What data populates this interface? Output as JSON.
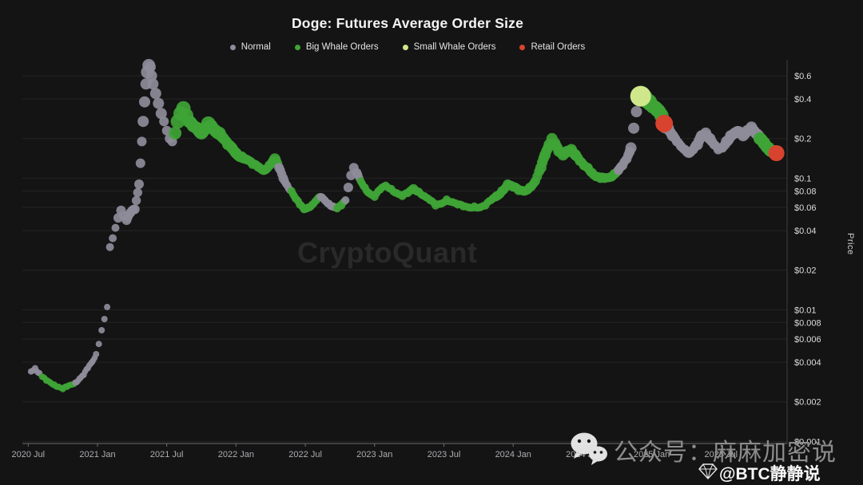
{
  "title": "Doge: Futures Average Order Size",
  "watermark": "CryptoQuant",
  "y_axis_title": "Price",
  "overlay": {
    "wechat_icon": "wechat-icon",
    "wechat_text": "公众号：麻麻加密说",
    "handle_icon": "diamond-icon",
    "handle": "@BTC静静说"
  },
  "chart_data": {
    "type": "scatter",
    "title": "Doge: Futures Average Order Size",
    "ylabel": "Price",
    "xlabel": "",
    "y_scale": "log",
    "x_range": [
      2020.45,
      2026.0
    ],
    "y_range": [
      0.001,
      0.75
    ],
    "grid": "horizontal",
    "legend_position": "top-center",
    "categories": [
      {
        "key": "n",
        "label": "Normal",
        "color": "#8f8c9a"
      },
      {
        "key": "b",
        "label": "Big Whale Orders",
        "color": "#3fa436"
      },
      {
        "key": "s",
        "label": "Small Whale Orders",
        "color": "#cfe78b"
      },
      {
        "key": "r",
        "label": "Retail Orders",
        "color": "#d7432e"
      }
    ],
    "x_ticks": [
      {
        "label": "2020 Jul",
        "t": 2020.5
      },
      {
        "label": "2021 Jan",
        "t": 2021.0
      },
      {
        "label": "2021 Jul",
        "t": 2021.5
      },
      {
        "label": "2022 Jan",
        "t": 2022.0
      },
      {
        "label": "2022 Jul",
        "t": 2022.5
      },
      {
        "label": "2023 Jan",
        "t": 2023.0
      },
      {
        "label": "2023 Jul",
        "t": 2023.5
      },
      {
        "label": "2024 Jan",
        "t": 2024.0
      },
      {
        "label": "2024 Jul",
        "t": 2024.5
      },
      {
        "label": "2025 Jan",
        "t": 2025.0
      },
      {
        "label": "2025 Jul",
        "t": 2025.5
      }
    ],
    "y_ticks": [
      {
        "label": "$0.6",
        "value": 0.6
      },
      {
        "label": "$0.4",
        "value": 0.4
      },
      {
        "label": "$0.2",
        "value": 0.2
      },
      {
        "label": "$0.1",
        "value": 0.1
      },
      {
        "label": "$0.08",
        "value": 0.08
      },
      {
        "label": "$0.06",
        "value": 0.06
      },
      {
        "label": "$0.04",
        "value": 0.04
      },
      {
        "label": "$0.02",
        "value": 0.02
      },
      {
        "label": "$0.01",
        "value": 0.01
      },
      {
        "label": "$0.008",
        "value": 0.008
      },
      {
        "label": "$0.006",
        "value": 0.006
      },
      {
        "label": "$0.004",
        "value": 0.004
      },
      {
        "label": "$0.002",
        "value": 0.002
      },
      {
        "label": "$0.001",
        "value": 0.001
      }
    ],
    "point_format": [
      "time_decimal_year",
      "price_usd",
      "category_key",
      "marker_radius_px"
    ],
    "points": [
      [
        2020.52,
        0.0034,
        "n",
        4
      ],
      [
        2020.55,
        0.0036,
        "n",
        4
      ],
      [
        2020.58,
        0.0033,
        "n",
        4
      ],
      [
        2020.6,
        0.0031,
        "b",
        4
      ],
      [
        2020.63,
        0.0029,
        "b",
        4
      ],
      [
        2020.66,
        0.0028,
        "b",
        4
      ],
      [
        2020.69,
        0.0027,
        "b",
        4
      ],
      [
        2020.72,
        0.0026,
        "b",
        4
      ],
      [
        2020.75,
        0.0025,
        "b",
        4
      ],
      [
        2020.78,
        0.0026,
        "b",
        4
      ],
      [
        2020.81,
        0.0027,
        "b",
        4
      ],
      [
        2020.84,
        0.0028,
        "n",
        4
      ],
      [
        2020.87,
        0.003,
        "n",
        4
      ],
      [
        2020.9,
        0.0032,
        "n",
        4
      ],
      [
        2020.93,
        0.0036,
        "n",
        4
      ],
      [
        2020.96,
        0.004,
        "n",
        4
      ],
      [
        2020.99,
        0.0046,
        "n",
        4
      ],
      [
        2021.01,
        0.0055,
        "n",
        4
      ],
      [
        2021.03,
        0.007,
        "n",
        4
      ],
      [
        2021.05,
        0.0085,
        "n",
        4
      ],
      [
        2021.07,
        0.0105,
        "n",
        4
      ],
      [
        2021.09,
        0.03,
        "n",
        5
      ],
      [
        2021.11,
        0.035,
        "n",
        5
      ],
      [
        2021.13,
        0.042,
        "n",
        5
      ],
      [
        2021.15,
        0.05,
        "n",
        6
      ],
      [
        2021.17,
        0.057,
        "n",
        6
      ],
      [
        2021.19,
        0.052,
        "n",
        6
      ],
      [
        2021.21,
        0.048,
        "n",
        6
      ],
      [
        2021.24,
        0.055,
        "n",
        6
      ],
      [
        2021.27,
        0.058,
        "n",
        6
      ],
      [
        2021.3,
        0.09,
        "n",
        6
      ],
      [
        2021.31,
        0.13,
        "n",
        6
      ],
      [
        2021.32,
        0.19,
        "n",
        6
      ],
      [
        2021.33,
        0.27,
        "n",
        7
      ],
      [
        2021.34,
        0.38,
        "n",
        7
      ],
      [
        2021.35,
        0.52,
        "n",
        7
      ],
      [
        2021.36,
        0.64,
        "n",
        8
      ],
      [
        2021.37,
        0.72,
        "n",
        8
      ],
      [
        2021.38,
        0.7,
        "n",
        7
      ],
      [
        2021.39,
        0.6,
        "n",
        7
      ],
      [
        2021.4,
        0.52,
        "n",
        7
      ],
      [
        2021.42,
        0.44,
        "n",
        7
      ],
      [
        2021.44,
        0.37,
        "n",
        7
      ],
      [
        2021.46,
        0.31,
        "n",
        7
      ],
      [
        2021.48,
        0.27,
        "n",
        6
      ],
      [
        2021.5,
        0.23,
        "n",
        6
      ],
      [
        2021.52,
        0.2,
        "n",
        6
      ],
      [
        2021.54,
        0.19,
        "n",
        6
      ],
      [
        2021.56,
        0.22,
        "b",
        8
      ],
      [
        2021.58,
        0.27,
        "b",
        9
      ],
      [
        2021.6,
        0.31,
        "b",
        9
      ],
      [
        2021.62,
        0.34,
        "b",
        9
      ],
      [
        2021.64,
        0.3,
        "b",
        9
      ],
      [
        2021.66,
        0.27,
        "b",
        8
      ],
      [
        2021.69,
        0.25,
        "b",
        8
      ],
      [
        2021.72,
        0.24,
        "b",
        8
      ],
      [
        2021.75,
        0.22,
        "b",
        8
      ],
      [
        2021.78,
        0.24,
        "b",
        8
      ],
      [
        2021.8,
        0.26,
        "b",
        9
      ],
      [
        2021.82,
        0.25,
        "b",
        8
      ],
      [
        2021.85,
        0.23,
        "b",
        8
      ],
      [
        2021.88,
        0.22,
        "b",
        8
      ],
      [
        2021.91,
        0.2,
        "b",
        7
      ],
      [
        2021.94,
        0.18,
        "b",
        7
      ],
      [
        2021.97,
        0.17,
        "b",
        7
      ],
      [
        2022.0,
        0.155,
        "b",
        7
      ],
      [
        2022.04,
        0.145,
        "b",
        7
      ],
      [
        2022.08,
        0.138,
        "b",
        6
      ],
      [
        2022.12,
        0.128,
        "b",
        6
      ],
      [
        2022.16,
        0.122,
        "b",
        6
      ],
      [
        2022.2,
        0.115,
        "b",
        6
      ],
      [
        2022.24,
        0.125,
        "b",
        6
      ],
      [
        2022.28,
        0.14,
        "b",
        7
      ],
      [
        2022.31,
        0.12,
        "n",
        6
      ],
      [
        2022.34,
        0.1,
        "n",
        6
      ],
      [
        2022.37,
        0.088,
        "n",
        5
      ],
      [
        2022.4,
        0.08,
        "b",
        5
      ],
      [
        2022.43,
        0.07,
        "b",
        5
      ],
      [
        2022.46,
        0.063,
        "b",
        5
      ],
      [
        2022.49,
        0.058,
        "b",
        5
      ],
      [
        2022.52,
        0.06,
        "b",
        5
      ],
      [
        2022.55,
        0.063,
        "b",
        5
      ],
      [
        2022.58,
        0.068,
        "b",
        5
      ],
      [
        2022.61,
        0.072,
        "n",
        5
      ],
      [
        2022.64,
        0.068,
        "n",
        5
      ],
      [
        2022.67,
        0.064,
        "n",
        5
      ],
      [
        2022.7,
        0.061,
        "n",
        5
      ],
      [
        2022.73,
        0.059,
        "b",
        5
      ],
      [
        2022.76,
        0.062,
        "b",
        5
      ],
      [
        2022.79,
        0.068,
        "n",
        5
      ],
      [
        2022.81,
        0.085,
        "n",
        6
      ],
      [
        2022.83,
        0.105,
        "n",
        6
      ],
      [
        2022.85,
        0.12,
        "n",
        6
      ],
      [
        2022.87,
        0.11,
        "n",
        6
      ],
      [
        2022.9,
        0.095,
        "b",
        5
      ],
      [
        2022.93,
        0.085,
        "b",
        5
      ],
      [
        2022.96,
        0.077,
        "b",
        5
      ],
      [
        2023.0,
        0.072,
        "b",
        5
      ],
      [
        2023.04,
        0.082,
        "b",
        5
      ],
      [
        2023.08,
        0.088,
        "b",
        5
      ],
      [
        2023.12,
        0.083,
        "b",
        5
      ],
      [
        2023.16,
        0.077,
        "b",
        5
      ],
      [
        2023.2,
        0.073,
        "b",
        5
      ],
      [
        2023.24,
        0.077,
        "b",
        5
      ],
      [
        2023.28,
        0.083,
        "b",
        6
      ],
      [
        2023.32,
        0.079,
        "b",
        5
      ],
      [
        2023.36,
        0.073,
        "b",
        5
      ],
      [
        2023.4,
        0.068,
        "b",
        5
      ],
      [
        2023.44,
        0.062,
        "b",
        5
      ],
      [
        2023.48,
        0.064,
        "b",
        5
      ],
      [
        2023.52,
        0.069,
        "b",
        5
      ],
      [
        2023.56,
        0.066,
        "b",
        5
      ],
      [
        2023.6,
        0.063,
        "b",
        5
      ],
      [
        2023.64,
        0.061,
        "b",
        5
      ],
      [
        2023.68,
        0.06,
        "b",
        5
      ],
      [
        2023.72,
        0.061,
        "b",
        5
      ],
      [
        2023.76,
        0.06,
        "b",
        5
      ],
      [
        2023.8,
        0.062,
        "b",
        5
      ],
      [
        2023.84,
        0.068,
        "b",
        5
      ],
      [
        2023.88,
        0.073,
        "b",
        6
      ],
      [
        2023.92,
        0.08,
        "b",
        6
      ],
      [
        2023.96,
        0.09,
        "b",
        6
      ],
      [
        2024.0,
        0.086,
        "b",
        6
      ],
      [
        2024.04,
        0.081,
        "b",
        6
      ],
      [
        2024.08,
        0.08,
        "b",
        6
      ],
      [
        2024.12,
        0.085,
        "b",
        6
      ],
      [
        2024.16,
        0.095,
        "b",
        6
      ],
      [
        2024.2,
        0.12,
        "b",
        7
      ],
      [
        2024.23,
        0.15,
        "b",
        7
      ],
      [
        2024.26,
        0.18,
        "b",
        7
      ],
      [
        2024.28,
        0.2,
        "b",
        7
      ],
      [
        2024.3,
        0.185,
        "b",
        7
      ],
      [
        2024.33,
        0.16,
        "b",
        7
      ],
      [
        2024.36,
        0.15,
        "b",
        7
      ],
      [
        2024.39,
        0.16,
        "b",
        7
      ],
      [
        2024.42,
        0.165,
        "b",
        7
      ],
      [
        2024.45,
        0.15,
        "b",
        7
      ],
      [
        2024.48,
        0.135,
        "b",
        6
      ],
      [
        2024.51,
        0.125,
        "b",
        6
      ],
      [
        2024.54,
        0.12,
        "b",
        6
      ],
      [
        2024.57,
        0.11,
        "b",
        6
      ],
      [
        2024.6,
        0.103,
        "b",
        6
      ],
      [
        2024.63,
        0.1,
        "b",
        6
      ],
      [
        2024.66,
        0.1,
        "b",
        6
      ],
      [
        2024.7,
        0.102,
        "b",
        6
      ],
      [
        2024.73,
        0.108,
        "b",
        6
      ],
      [
        2024.76,
        0.115,
        "n",
        6
      ],
      [
        2024.79,
        0.125,
        "n",
        6
      ],
      [
        2024.82,
        0.14,
        "n",
        6
      ],
      [
        2024.85,
        0.17,
        "n",
        7
      ],
      [
        2024.87,
        0.24,
        "n",
        7
      ],
      [
        2024.89,
        0.32,
        "n",
        7
      ],
      [
        2024.91,
        0.4,
        "n",
        8
      ],
      [
        2024.92,
        0.42,
        "s",
        13
      ],
      [
        2024.95,
        0.41,
        "b",
        10
      ],
      [
        2024.98,
        0.38,
        "b",
        10
      ],
      [
        2025.01,
        0.35,
        "b",
        9
      ],
      [
        2025.04,
        0.33,
        "b",
        9
      ],
      [
        2025.07,
        0.3,
        "b",
        9
      ],
      [
        2025.09,
        0.26,
        "r",
        11
      ],
      [
        2025.12,
        0.24,
        "n",
        7
      ],
      [
        2025.15,
        0.21,
        "n",
        7
      ],
      [
        2025.18,
        0.19,
        "n",
        6
      ],
      [
        2025.21,
        0.175,
        "n",
        6
      ],
      [
        2025.24,
        0.165,
        "n",
        6
      ],
      [
        2025.27,
        0.155,
        "n",
        6
      ],
      [
        2025.3,
        0.165,
        "n",
        6
      ],
      [
        2025.33,
        0.18,
        "n",
        7
      ],
      [
        2025.36,
        0.21,
        "n",
        7
      ],
      [
        2025.39,
        0.22,
        "n",
        7
      ],
      [
        2025.42,
        0.2,
        "n",
        7
      ],
      [
        2025.45,
        0.18,
        "n",
        6
      ],
      [
        2025.48,
        0.165,
        "n",
        6
      ],
      [
        2025.51,
        0.17,
        "n",
        6
      ],
      [
        2025.54,
        0.19,
        "n",
        7
      ],
      [
        2025.57,
        0.21,
        "n",
        7
      ],
      [
        2025.6,
        0.22,
        "n",
        7
      ],
      [
        2025.63,
        0.225,
        "n",
        7
      ],
      [
        2025.66,
        0.21,
        "n",
        7
      ],
      [
        2025.69,
        0.23,
        "n",
        7
      ],
      [
        2025.72,
        0.245,
        "n",
        7
      ],
      [
        2025.75,
        0.22,
        "n",
        7
      ],
      [
        2025.78,
        0.2,
        "b",
        8
      ],
      [
        2025.81,
        0.185,
        "b",
        8
      ],
      [
        2025.84,
        0.17,
        "b",
        8
      ],
      [
        2025.87,
        0.16,
        "b",
        8
      ],
      [
        2025.9,
        0.155,
        "r",
        10
      ]
    ]
  }
}
